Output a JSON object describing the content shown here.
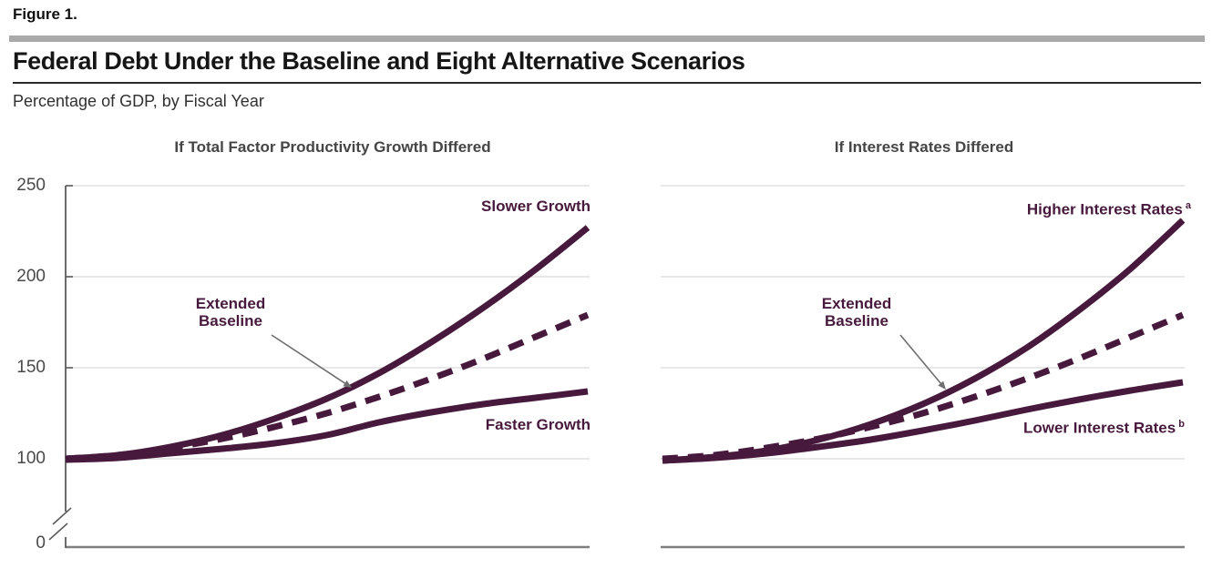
{
  "header": {
    "figure_label": "Figure 1.",
    "title": "Federal Debt Under the Baseline and Eight Alternative Scenarios",
    "subtitle": "Percentage of GDP, by Fiscal Year"
  },
  "colors": {
    "line": "#471a3d",
    "grid": "#e0e0e0",
    "axis": "#5c5c5c",
    "bottom_axis": "#7f7f7f",
    "arrow": "#6f6f6f",
    "panel_title": "#454545",
    "tick_label": "#4a4a4a",
    "divider_bar": "#a9a9a9",
    "label_text": "#471a3d"
  },
  "chart_data": [
    {
      "type": "line",
      "title": "If Total Factor Productivity Growth Differed",
      "ylim": [
        0,
        250
      ],
      "y_ticks": [
        250,
        200,
        150,
        100,
        0
      ],
      "y_axis_break_between": [
        0,
        100
      ],
      "x_labels": [],
      "grid": "horizontal",
      "annotation": "Extended Baseline",
      "series": [
        {
          "name": "Slower Growth",
          "sup": "",
          "style": "solid",
          "points": [
            [
              0,
              100
            ],
            [
              0.1,
              102
            ],
            [
              0.2,
              106.5
            ],
            [
              0.3,
              113
            ],
            [
              0.4,
              122
            ],
            [
              0.5,
              133
            ],
            [
              0.6,
              147
            ],
            [
              0.7,
              164
            ],
            [
              0.8,
              183
            ],
            [
              0.9,
              204
            ],
            [
              1,
              227
            ]
          ]
        },
        {
          "name": "Extended Baseline",
          "sup": "",
          "style": "dashed",
          "points": [
            [
              0,
              100
            ],
            [
              0.1,
              102
            ],
            [
              0.2,
              106
            ],
            [
              0.3,
              111
            ],
            [
              0.4,
              117.5
            ],
            [
              0.5,
              125
            ],
            [
              0.6,
              134
            ],
            [
              0.7,
              144
            ],
            [
              0.8,
              155
            ],
            [
              0.9,
              167
            ],
            [
              1,
              179
            ]
          ]
        },
        {
          "name": "Faster Growth",
          "sup": "",
          "style": "solid",
          "points": [
            [
              0,
              99.5
            ],
            [
              0.1,
              100.5
            ],
            [
              0.2,
              103
            ],
            [
              0.3,
              105.5
            ],
            [
              0.4,
              108.5
            ],
            [
              0.5,
              113
            ],
            [
              0.6,
              120
            ],
            [
              0.7,
              125.5
            ],
            [
              0.8,
              130
            ],
            [
              0.9,
              133.5
            ],
            [
              1,
              137
            ]
          ]
        }
      ]
    },
    {
      "type": "line",
      "title": "If Interest Rates Differed",
      "ylim": [
        0,
        250
      ],
      "y_ticks": [
        250,
        200,
        150,
        100,
        0
      ],
      "y_axis_break_between": [
        0,
        100
      ],
      "x_labels": [],
      "grid": "horizontal",
      "annotation": "Extended Baseline",
      "series": [
        {
          "name": "Higher Interest Rates",
          "sup": "a",
          "style": "solid",
          "points": [
            [
              0,
              99
            ],
            [
              0.1,
              101
            ],
            [
              0.2,
              104.5
            ],
            [
              0.3,
              110.5
            ],
            [
              0.4,
              119
            ],
            [
              0.5,
              130
            ],
            [
              0.6,
              144
            ],
            [
              0.7,
              161
            ],
            [
              0.8,
              181.5
            ],
            [
              0.9,
              204.5
            ],
            [
              1,
              231
            ]
          ]
        },
        {
          "name": "Extended Baseline",
          "sup": "",
          "style": "dashed",
          "points": [
            [
              0,
              100
            ],
            [
              0.1,
              102
            ],
            [
              0.2,
              106
            ],
            [
              0.3,
              111
            ],
            [
              0.4,
              117.5
            ],
            [
              0.5,
              125
            ],
            [
              0.6,
              134
            ],
            [
              0.7,
              144
            ],
            [
              0.8,
              155
            ],
            [
              0.9,
              167
            ],
            [
              1,
              179
            ]
          ]
        },
        {
          "name": "Lower Interest Rates",
          "sup": "b",
          "style": "solid",
          "points": [
            [
              0,
              99
            ],
            [
              0.1,
              100.5
            ],
            [
              0.2,
              103
            ],
            [
              0.3,
              106.5
            ],
            [
              0.4,
              110.5
            ],
            [
              0.5,
              115.5
            ],
            [
              0.6,
              121
            ],
            [
              0.7,
              127
            ],
            [
              0.8,
              132.5
            ],
            [
              0.9,
              137.5
            ],
            [
              1,
              142
            ]
          ]
        }
      ]
    }
  ]
}
